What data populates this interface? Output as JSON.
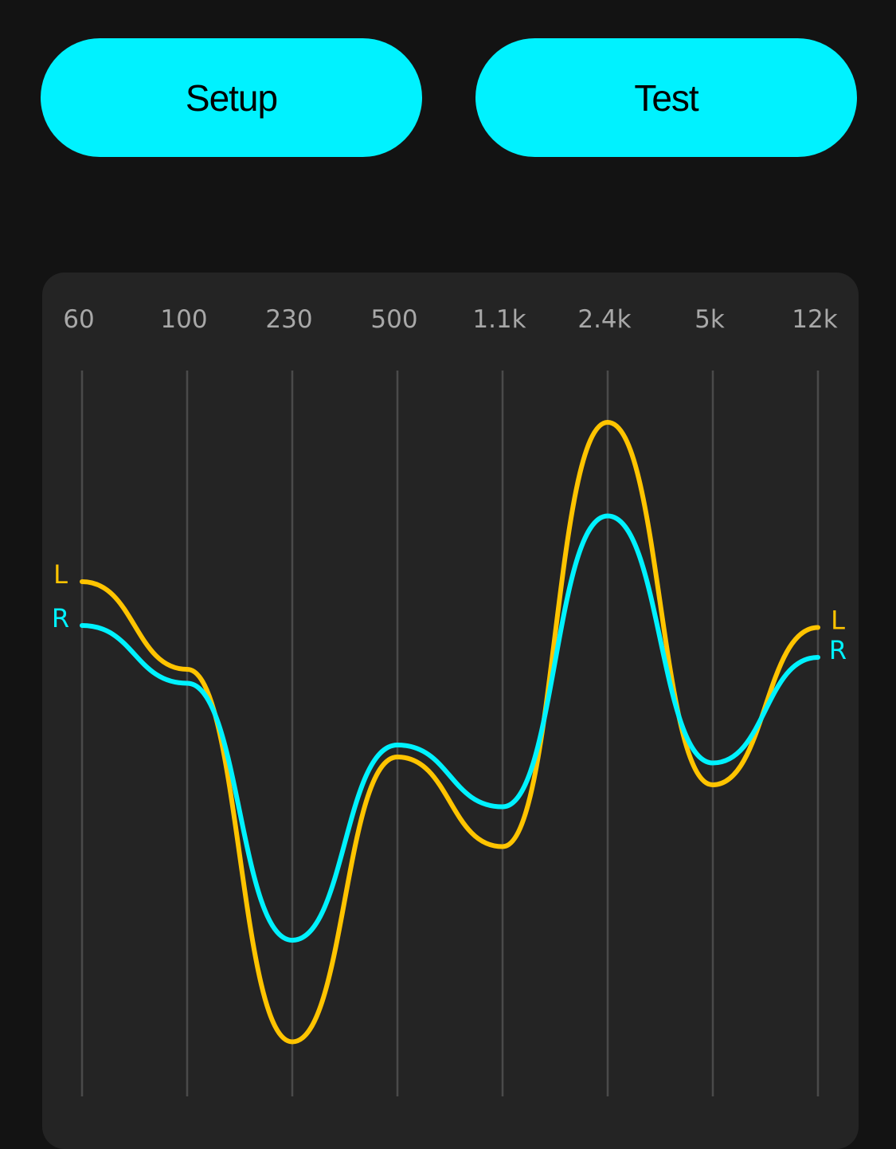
{
  "buttons": {
    "setup": "Setup",
    "test": "Test"
  },
  "colors": {
    "accent": "#00f2ff",
    "left": "#ffc400",
    "right": "#00f2ff",
    "panel": "#242424",
    "background": "#131313"
  },
  "chart_data": {
    "type": "line",
    "categories": [
      "60",
      "100",
      "230",
      "500",
      "1.1k",
      "2.4k",
      "5k",
      "12k"
    ],
    "grid": true,
    "series": [
      {
        "name": "L",
        "color": "#ffc400",
        "values": [
          6.4,
          2.0,
          -16.7,
          -2.4,
          -6.9,
          14.4,
          -3.8,
          4.1
        ]
      },
      {
        "name": "R",
        "color": "#00f2ff",
        "values": [
          4.2,
          1.3,
          -11.6,
          -1.8,
          -4.9,
          9.7,
          -2.7,
          2.6
        ]
      }
    ]
  }
}
